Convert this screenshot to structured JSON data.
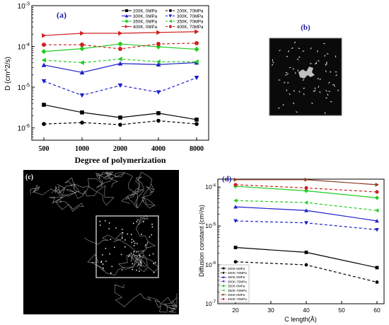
{
  "chart_data": [
    {
      "type": "line",
      "panel_label": "(a)",
      "xlabel": "Degree of polymerization",
      "ylabel": "D (cm^2/s)",
      "x_scale": "categorical",
      "y_scale": "log",
      "ylim": [
        5e-07,
        0.001
      ],
      "categories": [
        "500",
        "1000",
        "2000",
        "4000",
        "8000"
      ],
      "y_ticks": [
        {
          "value": 1e-06,
          "base": "10",
          "exp": "-6"
        },
        {
          "value": 1e-05,
          "base": "10",
          "exp": "-5"
        },
        {
          "value": 0.0001,
          "base": "10",
          "exp": "-4"
        },
        {
          "value": 0.001,
          "base": "10",
          "exp": "-3"
        }
      ],
      "legend_position": "top-right",
      "series": [
        {
          "name": "200K, 0MPa",
          "color": "#000000",
          "marker": "square",
          "dash": false,
          "values": [
            3.7e-06,
            2.4e-06,
            1.8e-06,
            2.3e-06,
            1.6e-06
          ]
        },
        {
          "name": "200K, 70MPa",
          "color": "#000000",
          "marker": "circle",
          "dash": true,
          "values": [
            1.25e-06,
            1.35e-06,
            1.2e-06,
            1.5e-06,
            1.25e-06
          ]
        },
        {
          "name": "300K, 0MPa",
          "color": "#1f1fcc",
          "marker": "triangle-up",
          "dash": false,
          "values": [
            3.5e-05,
            2.3e-05,
            3.8e-05,
            3.6e-05,
            4e-05
          ]
        },
        {
          "name": "300K, 70MPa",
          "color": "#1f1fcc",
          "marker": "triangle-down",
          "dash": true,
          "values": [
            1.4e-05,
            6.3e-06,
            1.1e-05,
            7.5e-06,
            1.7e-05
          ]
        },
        {
          "name": "350K, 0MPa",
          "color": "#22cc22",
          "marker": "diamond",
          "dash": false,
          "values": [
            7.5e-05,
            8.8e-05,
            0.000115,
            9.8e-05,
            8.5e-05
          ]
        },
        {
          "name": "350K, 70MPa",
          "color": "#22cc22",
          "marker": "triangle-left",
          "dash": true,
          "values": [
            4.6e-05,
            4e-05,
            4.9e-05,
            4.2e-05,
            4.2e-05
          ]
        },
        {
          "name": "400K, 0MPa",
          "color": "#cc1f1f",
          "marker": "triangle-right",
          "dash": false,
          "values": [
            0.000185,
            0.00021,
            0.00021,
            0.00022,
            0.00023
          ]
        },
        {
          "name": "400K, 70MPa",
          "color": "#cc1f1f",
          "marker": "hexagon",
          "dash": true,
          "values": [
            0.00011,
            0.00011,
            8.7e-05,
            0.000115,
            0.00012
          ]
        }
      ]
    },
    {
      "type": "line",
      "panel_label": "(d)",
      "xlabel": "C length(Å)",
      "ylabel": "Diffusion constant (cm²/s)",
      "x_scale": "linear",
      "y_scale": "log",
      "xlim": [
        15,
        62
      ],
      "ylim": [
        1e-07,
        0.00016
      ],
      "x_ticks": [
        "20",
        "30",
        "40",
        "50",
        "60"
      ],
      "y_ticks": [
        {
          "value": 1e-07,
          "base": "10",
          "exp": "-7"
        },
        {
          "value": 1e-06,
          "base": "10",
          "exp": "-6"
        },
        {
          "value": 1e-05,
          "base": "10",
          "exp": "-5"
        },
        {
          "value": 0.0001,
          "base": "10",
          "exp": "-4"
        }
      ],
      "legend_position": "bottom-left",
      "x": [
        20,
        40,
        60
      ],
      "series": [
        {
          "name": "200K-0MPa",
          "color": "#000000",
          "marker": "square",
          "dash": false,
          "values": [
            2.8e-06,
            2.1e-06,
            8.5e-07
          ]
        },
        {
          "name": "200K-70MPa",
          "color": "#000000",
          "marker": "circle",
          "dash": true,
          "values": [
            1.2e-06,
            1e-06,
            3.6e-07
          ]
        },
        {
          "name": "300K-0MPa",
          "color": "#1f1fcc",
          "marker": "triangle-up",
          "dash": false,
          "values": [
            3.1e-05,
            2.5e-05,
            1.35e-05
          ]
        },
        {
          "name": "300K-70MPa",
          "color": "#1f1fcc",
          "marker": "triangle-down",
          "dash": true,
          "values": [
            1.35e-05,
            1.2e-05,
            8e-06
          ]
        },
        {
          "name": "350K-0MPa",
          "color": "#22cc22",
          "marker": "diamond",
          "dash": false,
          "values": [
            0.000105,
            8e-05,
            5.3e-05
          ]
        },
        {
          "name": "350K-70MPa",
          "color": "#22cc22",
          "marker": "triangle-left",
          "dash": true,
          "values": [
            4.5e-05,
            4e-05,
            2.5e-05
          ]
        },
        {
          "name": "400K-0MPa",
          "color": "#8b3a1f",
          "marker": "triangle-right",
          "dash": false,
          "values": [
            0.000155,
            0.000155,
            0.000115
          ]
        },
        {
          "name": "400K-70MPa",
          "color": "#cc1f1f",
          "marker": "hexagon",
          "dash": true,
          "values": [
            0.000115,
            9.5e-05,
            7.5e-05
          ]
        }
      ]
    }
  ],
  "images": [
    {
      "panel_label": "(b)",
      "description_label": ""
    },
    {
      "panel_label": "(c)",
      "description_label": ""
    }
  ]
}
